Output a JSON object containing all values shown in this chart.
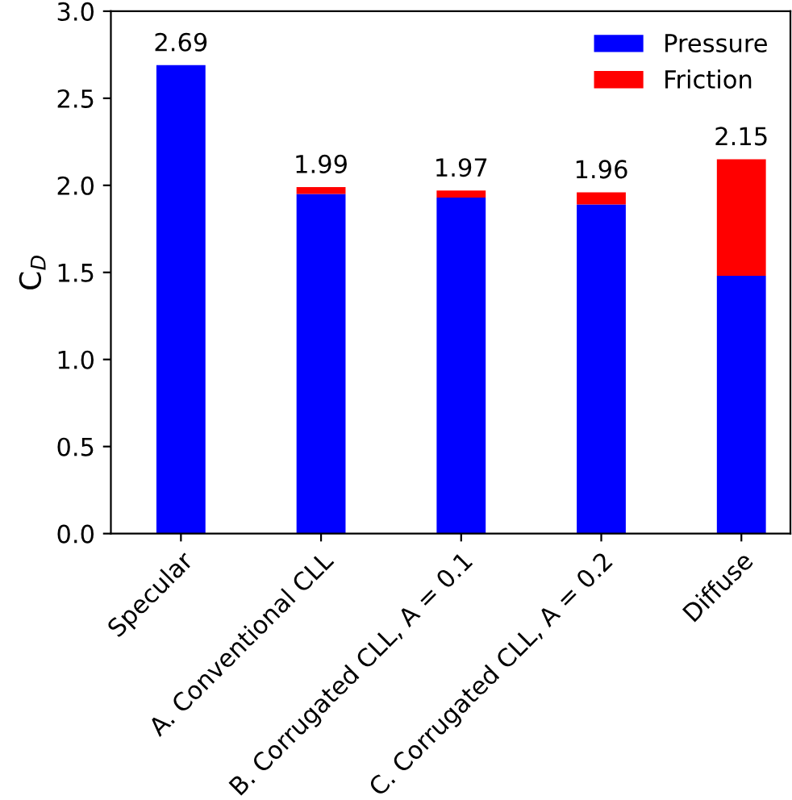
{
  "chart_data": {
    "type": "bar",
    "stacked": true,
    "ylabel": "C$_{D}$",
    "categories": [
      "Specular",
      "A. Conventional CLL",
      "B. Corrugated CLL, A = 0.1",
      "C. Corrugated CLL, A = 0.2",
      "Diffuse"
    ],
    "series": [
      {
        "name": "Pressure",
        "color": "#0000ff",
        "values": [
          2.69,
          1.95,
          1.93,
          1.89,
          1.48
        ]
      },
      {
        "name": "Friction",
        "color": "#ff0000",
        "values": [
          0.0,
          0.04,
          0.04,
          0.07,
          0.67
        ]
      }
    ],
    "totals": [
      "2.69",
      "1.99",
      "1.97",
      "1.96",
      "2.15"
    ],
    "ylim": [
      0,
      3.0
    ],
    "yticks": [
      {
        "value": 0,
        "label": "0.0"
      },
      0.5,
      {
        "value": 1,
        "label": "1.0"
      },
      1.5,
      {
        "value": 2,
        "label": "2.0"
      },
      2.5,
      {
        "value": 3,
        "label": "3.0"
      }
    ],
    "grid": false,
    "legend": "top right"
  }
}
